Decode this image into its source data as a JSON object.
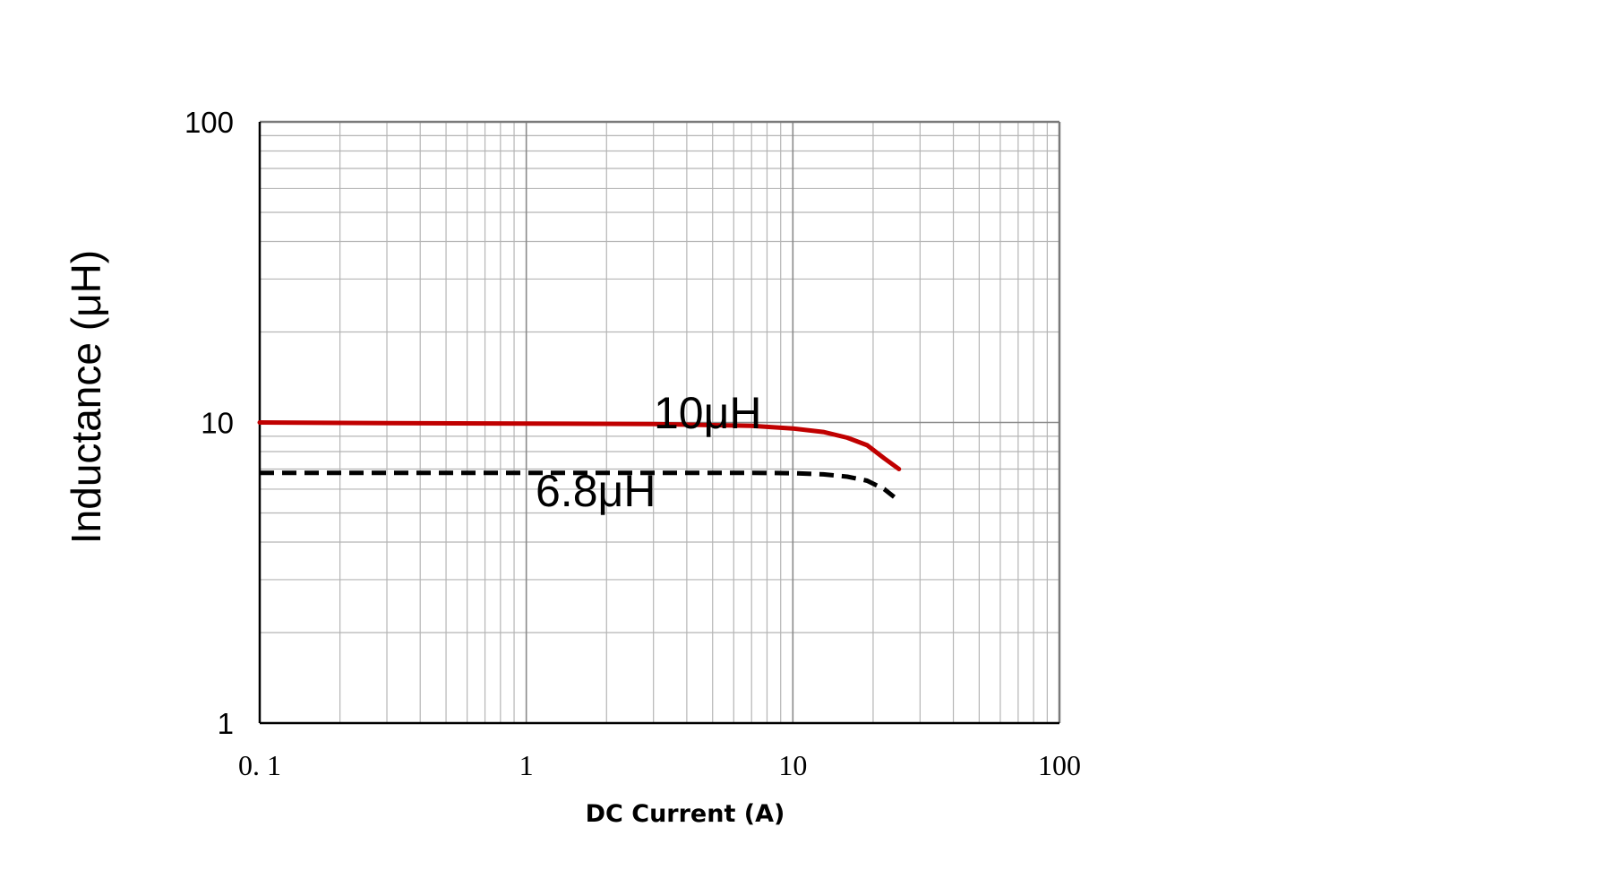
{
  "chart_data": {
    "type": "line",
    "title": "",
    "xlabel": "DC Current (A)",
    "ylabel": "Inductance (μH)",
    "xscale": "log",
    "yscale": "log",
    "xlim": [
      0.1,
      100
    ],
    "ylim": [
      1,
      100
    ],
    "x_tick_labels": [
      "0. 1",
      "1",
      "10",
      "100"
    ],
    "y_tick_labels": [
      "1",
      "10",
      "100"
    ],
    "grid": true,
    "series": [
      {
        "name": "10μH",
        "color": "#c00000",
        "style": "solid",
        "x": [
          0.1,
          0.3,
          1,
          3,
          7,
          10,
          13,
          16,
          19,
          22,
          25
        ],
        "y": [
          10.0,
          9.95,
          9.92,
          9.88,
          9.75,
          9.55,
          9.3,
          8.9,
          8.4,
          7.6,
          7.0
        ]
      },
      {
        "name": "6.8μH",
        "color": "#000000",
        "style": "dashed",
        "x": [
          0.1,
          0.3,
          1,
          3,
          7,
          10,
          13,
          16,
          19,
          22,
          24
        ],
        "y": [
          6.8,
          6.8,
          6.8,
          6.8,
          6.8,
          6.78,
          6.72,
          6.6,
          6.4,
          6.0,
          5.65
        ]
      }
    ],
    "annotations": [
      "10μH",
      "6.8μH"
    ]
  }
}
